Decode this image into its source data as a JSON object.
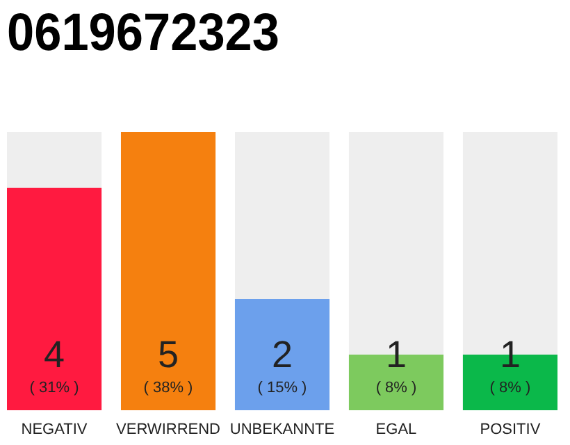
{
  "chart_data": {
    "type": "bar",
    "title": "0619672323",
    "categories": [
      "NEGATIV",
      "VERWIRREND",
      "UNBEKANNTE",
      "EGAL",
      "POSITIV"
    ],
    "values": [
      4,
      5,
      2,
      1,
      1
    ],
    "colors": [
      "#ff1a40",
      "#f5800f",
      "#6ca0ec",
      "#7dca5e",
      "#0bb84a"
    ],
    "ylim": [
      0,
      5
    ],
    "tick_labels": "x",
    "data_labels": true,
    "annotations": [
      "( 31% )",
      "( 38% )",
      "( 15% )",
      "( 8% )",
      "( 8% )"
    ]
  }
}
